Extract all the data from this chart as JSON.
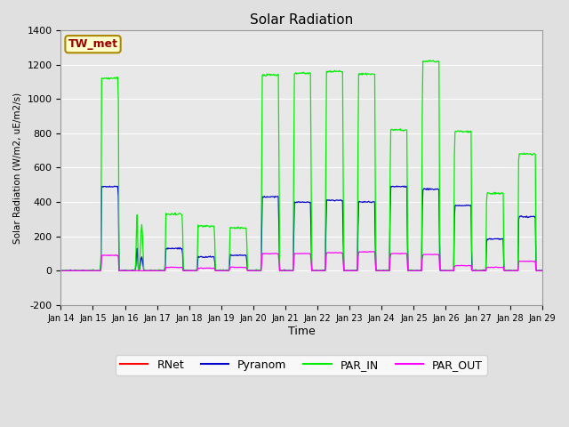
{
  "title": "Solar Radiation",
  "ylabel": "Solar Radiation (W/m2, uE/m2/s)",
  "xlabel": "Time",
  "ylim": [
    -200,
    1400
  ],
  "xlim": [
    0,
    360
  ],
  "fig_bg": "#e0e0e0",
  "plot_bg": "#e8e8e8",
  "grid_color": "#ffffff",
  "series_colors": {
    "RNet": "#ff0000",
    "Pyranom": "#0000cc",
    "PAR_IN": "#00ee00",
    "PAR_OUT": "#ff00ff"
  },
  "xtick_labels": [
    "Jan 14",
    "Jan 15",
    "Jan 16",
    "Jan 17",
    "Jan 18",
    "Jan 19",
    "Jan 20",
    "Jan 21",
    "Jan 22",
    "Jan 23",
    "Jan 24",
    "Jan 25",
    "Jan 26",
    "Jan 27",
    "Jan 28",
    "Jan 29"
  ],
  "xtick_positions": [
    0,
    24,
    48,
    72,
    96,
    120,
    144,
    168,
    192,
    216,
    240,
    264,
    288,
    312,
    336,
    360
  ],
  "ytick_labels": [
    "-200",
    "0",
    "200",
    "400",
    "600",
    "800",
    "1000",
    "1200",
    "1400"
  ],
  "ytick_values": [
    -200,
    0,
    200,
    400,
    600,
    800,
    1000,
    1200,
    1400
  ],
  "station_label": "TW_met",
  "station_label_color": "#990000",
  "station_label_bg": "#ffffcc",
  "station_label_border": "#aa8800"
}
